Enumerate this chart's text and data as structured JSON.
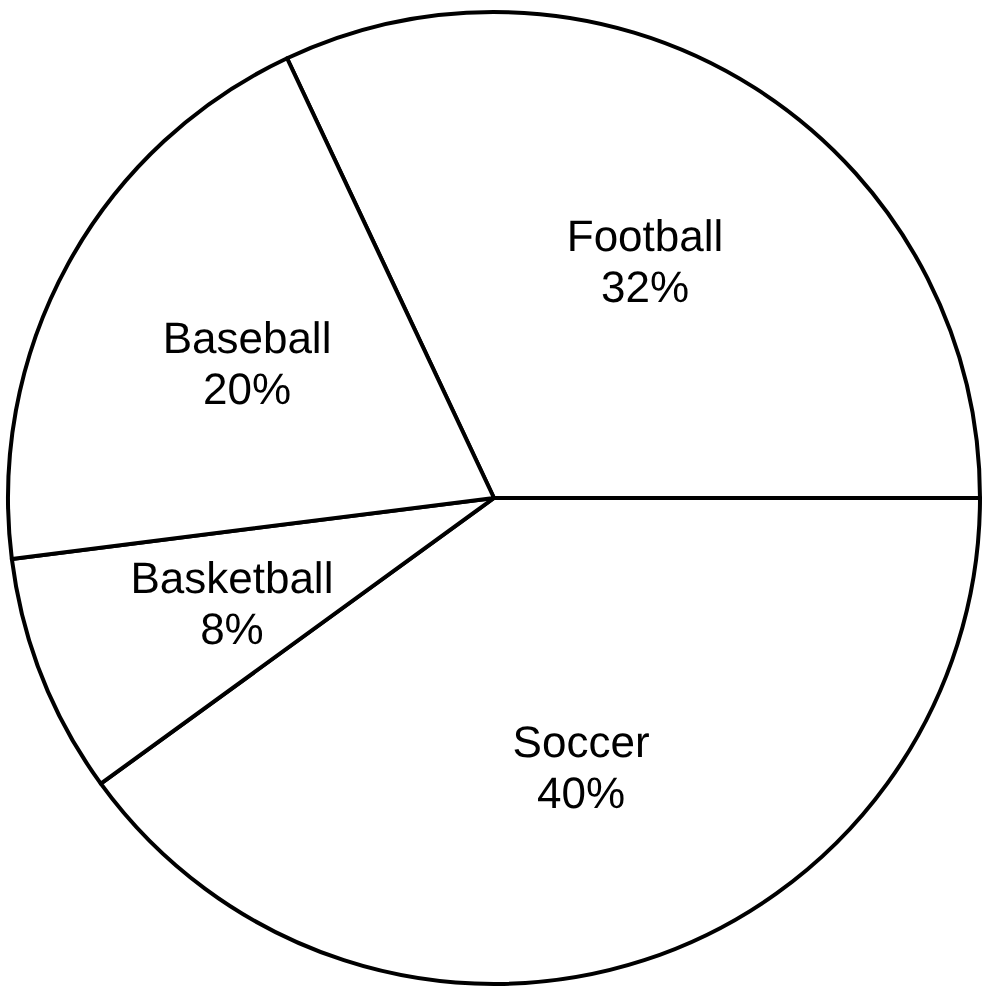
{
  "chart_data": {
    "type": "pie",
    "categories": [
      "Football",
      "Soccer",
      "Basketball",
      "Baseball"
    ],
    "values": [
      32,
      40,
      8,
      20
    ],
    "colors": [
      "#ffffff",
      "#ffffff",
      "#ffffff",
      "#ffffff"
    ],
    "value_labels": [
      "32%",
      "40%",
      "8%",
      "20%"
    ]
  }
}
